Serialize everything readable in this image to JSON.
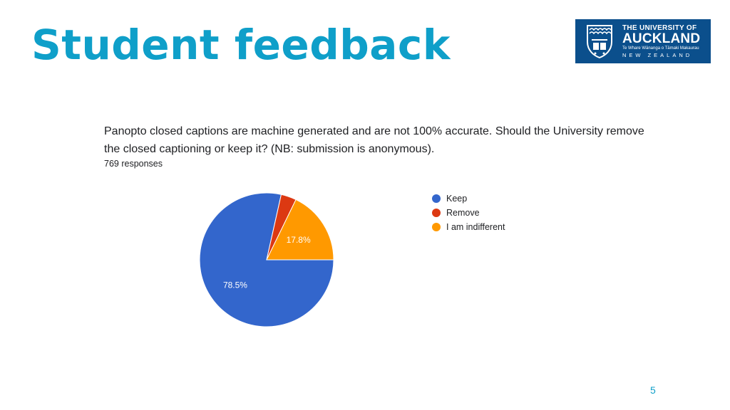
{
  "slide": {
    "title": "Student feedback",
    "page_number": "5"
  },
  "logo": {
    "line1": "THE UNIVERSITY OF",
    "line2": "AUCKLAND",
    "line3": "Te Whare Wānanga o Tāmaki Makaurau",
    "line4": "NEW ZEALAND",
    "background": "#0b4f8c",
    "icon": "university-crest-icon"
  },
  "form": {
    "question": "Panopto closed captions are machine generated and are not 100% accurate. Should the University remove the closed captioning or keep it? (NB: submission is anonymous).",
    "responses": "769 responses"
  },
  "chart_data": {
    "type": "pie",
    "categories": [
      "Keep",
      "Remove",
      "I am indifferent"
    ],
    "values": [
      78.5,
      3.7,
      17.8
    ],
    "labels": [
      "78.5%",
      "",
      "17.8%"
    ],
    "colors": [
      "#3366cc",
      "#dc3912",
      "#ff9900"
    ],
    "legend": "right"
  }
}
